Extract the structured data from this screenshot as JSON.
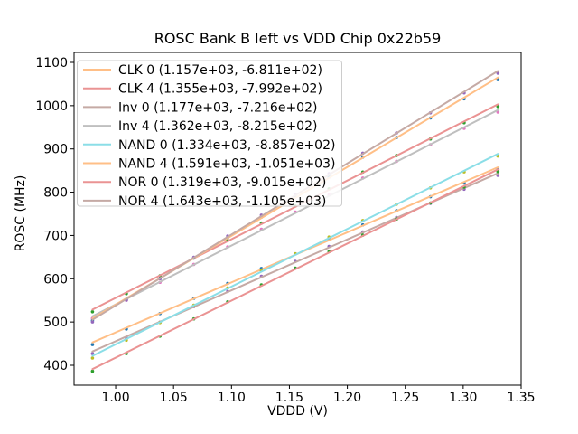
{
  "figure": {
    "title": "ROSC Bank B left vs VDD Chip 0x22b59",
    "xlabel": "VDDD (V)",
    "ylabel": "ROSC (MHz)",
    "frame_color": "#000000",
    "background": "#ffffff"
  },
  "legend": {
    "border_color": "#cccccc",
    "background": "#ffffff",
    "position": "upper left"
  },
  "chart_data": {
    "type": "scatter",
    "title": "ROSC Bank B left vs VDD Chip 0x22b59",
    "xlabel": "VDDD (V)",
    "ylabel": "ROSC (MHz)",
    "grid": false,
    "xlim": [
      0.9641,
      1.35
    ],
    "ylim": [
      354,
      1123
    ],
    "xticks": [
      1.0,
      1.05,
      1.1,
      1.15,
      1.2,
      1.25,
      1.3,
      1.35
    ],
    "xtick_labels": [
      "1.00",
      "1.05",
      "1.10",
      "1.15",
      "1.20",
      "1.25",
      "1.30",
      "1.35"
    ],
    "yticks": [
      400,
      500,
      600,
      700,
      800,
      900,
      1000,
      1100
    ],
    "ytick_labels": [
      "400",
      "500",
      "600",
      "700",
      "800",
      "900",
      "1000",
      "1100"
    ],
    "x": [
      0.98,
      1.0092,
      1.0383,
      1.0675,
      1.0967,
      1.1258,
      1.155,
      1.1842,
      1.2133,
      1.2425,
      1.2717,
      1.3008,
      1.33
    ],
    "series": [
      {
        "name": "CLK 0",
        "legend_label": "CLK 0 (1.157e+03, -6.811e+02)",
        "fit_slope": 1157,
        "fit_intercept": -681.1,
        "line_color": "#ffbf87",
        "marker_color": "#1f77b4",
        "values": [
          447.8,
          483.8,
          519.4,
          554.6,
          589.4,
          623.8,
          657.7,
          691.3,
          724.4,
          757.1,
          789.4,
          821.3,
          852.7
        ]
      },
      {
        "name": "CLK 4",
        "legend_label": "CLK 4 (1.355e+03, -7.992e+02)",
        "fit_slope": 1355,
        "fit_intercept": -799.2,
        "line_color": "#ea9393",
        "marker_color": "#2ca02c",
        "values": [
          523.7,
          565.5,
          606.9,
          647.9,
          688.5,
          728.6,
          768.3,
          807.6,
          846.5,
          885.0,
          923.1,
          960.7,
          998.0
        ]
      },
      {
        "name": "Inv 0",
        "legend_label": "Inv 0 (1.177e+03, -7.216e+02)",
        "fit_slope": 1177,
        "fit_intercept": -721.6,
        "line_color": "#c5aaa5",
        "marker_color": "#9467bd",
        "values": [
          426.9,
          463.5,
          499.7,
          535.5,
          570.8,
          605.8,
          640.3,
          674.5,
          708.2,
          741.4,
          774.3,
          806.8,
          838.8
        ]
      },
      {
        "name": "Inv 4",
        "legend_label": "Inv 4 (1.362e+03, -8.215e+02)",
        "fit_slope": 1362,
        "fit_intercept": -821.5,
        "line_color": "#bfbfbf",
        "marker_color": "#e377c2",
        "values": [
          508.3,
          550.3,
          591.9,
          633.1,
          673.8,
          714.2,
          754.1,
          793.6,
          832.7,
          871.4,
          909.7,
          947.5,
          985.0
        ]
      },
      {
        "name": "NAND 0",
        "legend_label": "NAND 0 (1.334e+03, -8.857e+02)",
        "fit_slope": 1334,
        "fit_intercept": -885.7,
        "line_color": "#8bdee7",
        "marker_color": "#bcbd22",
        "values": [
          416.6,
          457.8,
          498.6,
          538.9,
          578.9,
          618.5,
          657.6,
          696.3,
          734.6,
          772.4,
          809.9,
          846.9,
          883.5
        ]
      },
      {
        "name": "NAND 4",
        "legend_label": "NAND 4 (1.591e+03, -1.051e+03)",
        "fit_slope": 1591,
        "fit_intercept": -1051,
        "line_color": "#ffbf87",
        "marker_color": "#1f77b4",
        "values": [
          503.2,
          551.9,
          600.2,
          648.0,
          695.5,
          742.5,
          789.1,
          835.3,
          881.1,
          926.4,
          971.4,
          1015.9,
          1060.0
        ]
      },
      {
        "name": "NOR 0",
        "legend_label": "NOR 0 (1.319e+03, -9.015e+02)",
        "fit_slope": 1319,
        "fit_intercept": -901.5,
        "line_color": "#ea9393",
        "marker_color": "#2ca02c",
        "values": [
          386.1,
          426.9,
          467.2,
          507.2,
          546.7,
          585.8,
          624.4,
          662.7,
          700.6,
          738.0,
          775.0,
          811.6,
          847.8
        ]
      },
      {
        "name": "NOR 4",
        "legend_label": "NOR 4 (1.643e+03, -1.105e+03)",
        "fit_slope": 1643,
        "fit_intercept": -1105,
        "line_color": "#c5aaa5",
        "marker_color": "#9467bd",
        "values": [
          500.1,
          550.4,
          600.2,
          649.5,
          698.5,
          747.0,
          795.2,
          842.9,
          890.2,
          937.1,
          983.5,
          1029.6,
          1075.2
        ]
      }
    ]
  }
}
